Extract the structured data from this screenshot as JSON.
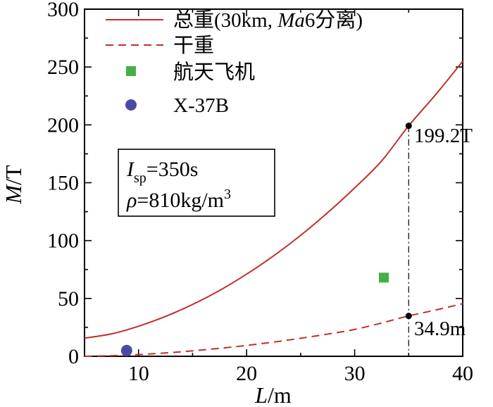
{
  "chart_data": {
    "type": "line",
    "xlabel_italic": "L",
    "xlabel_rest": "/m",
    "ylabel_italic": "M",
    "ylabel_rest": "/T",
    "xlim": [
      5,
      40
    ],
    "ylim": [
      0,
      300
    ],
    "xticks": [
      10,
      20,
      30,
      40
    ],
    "yticks": [
      0,
      50,
      100,
      150,
      200,
      250,
      300
    ],
    "grid": false,
    "series": [
      {
        "name": "总重(30km, Ma6分离)",
        "legend_prefix": "总重(30km, ",
        "legend_italic": "Ma",
        "legend_suffix": "6分离)",
        "style": "solid",
        "color": "#c0302a",
        "x": [
          5,
          7.5,
          10,
          12.5,
          15,
          17.5,
          20,
          22.5,
          25,
          27.5,
          30,
          32.5,
          35,
          37.5,
          40
        ],
        "y": [
          15.7,
          19.4,
          26.0,
          34.5,
          44.8,
          56.9,
          71.0,
          86.8,
          104.5,
          124.1,
          145.5,
          168.9,
          199.2,
          226.2,
          255.0
        ]
      },
      {
        "name": "干重",
        "style": "dashed",
        "color": "#c0302a",
        "x": [
          5,
          7.5,
          10,
          12.5,
          15,
          17.5,
          20,
          22.5,
          25,
          27.5,
          30,
          32.5,
          35,
          37.5,
          40
        ],
        "y": [
          0.0,
          0.5,
          1.5,
          2.9,
          4.7,
          6.9,
          9.4,
          12.3,
          15.6,
          19.2,
          23.2,
          28.8,
          34.9,
          40.0,
          45.5
        ]
      },
      {
        "name": "航天飞机",
        "style": "marker-square",
        "color": "#44b044",
        "x": [
          32.7
        ],
        "y": [
          68
        ]
      },
      {
        "name": "X-37B",
        "style": "marker-circle",
        "color": "#4a4aa6",
        "x": [
          8.9
        ],
        "y": [
          5
        ]
      }
    ],
    "annotations": [
      {
        "text": "199.2T",
        "x": 35,
        "y": 199.2
      },
      {
        "text": "34.9m",
        "x": 35,
        "y": 34.9
      }
    ],
    "reference_line": {
      "x": 35,
      "y_from": 34.9,
      "y_to": 199.2,
      "style": "dash-dot"
    },
    "params": {
      "isp_symbol": "I",
      "isp_sub": "sp",
      "isp_value": "=350s",
      "rho_symbol": "ρ",
      "rho_value": "=810kg/m",
      "rho_exp": "3"
    }
  }
}
